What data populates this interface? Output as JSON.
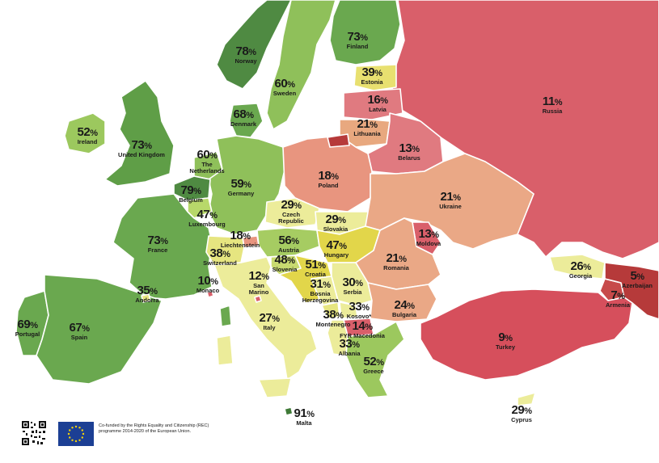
{
  "countries": [
    {
      "id": "russia",
      "name": "Russia",
      "value": "11",
      "color": "#d95f6a"
    },
    {
      "id": "finland",
      "name": "Finland",
      "value": "73",
      "color": "#6aa84f"
    },
    {
      "id": "norway",
      "name": "Norway",
      "value": "78",
      "color": "#4f8a42"
    },
    {
      "id": "sweden",
      "name": "Sweden",
      "value": "60",
      "color": "#8fc05a"
    },
    {
      "id": "estonia",
      "name": "Estonia",
      "value": "39",
      "color": "#e8e070"
    },
    {
      "id": "latvia",
      "name": "Latvia",
      "value": "16",
      "color": "#e07a80"
    },
    {
      "id": "lithuania",
      "name": "Lithuania",
      "value": "21",
      "color": "#e8a87f"
    },
    {
      "id": "belarus",
      "name": "Belarus",
      "value": "13",
      "color": "#e07a80"
    },
    {
      "id": "denmark",
      "name": "Denmark",
      "value": "68",
      "color": "#6aa84f"
    },
    {
      "id": "ireland",
      "name": "Ireland",
      "value": "52",
      "color": "#9cc85e"
    },
    {
      "id": "united-kingdom",
      "name": "United Kingdom",
      "value": "73",
      "color": "#5f9e47"
    },
    {
      "id": "netherlands",
      "name": "The Netherlands",
      "value": "60",
      "color": "#8fc05a"
    },
    {
      "id": "germany",
      "name": "Germany",
      "value": "59",
      "color": "#8fc05a"
    },
    {
      "id": "poland",
      "name": "Poland",
      "value": "18",
      "color": "#e8957f"
    },
    {
      "id": "belgium",
      "name": "Belgium",
      "value": "79",
      "color": "#4f8a42"
    },
    {
      "id": "luxembourg",
      "name": "Luxembourg",
      "value": "47",
      "color": "#b8d86a"
    },
    {
      "id": "czech-republic",
      "name": "Czech Republic",
      "value": "29",
      "color": "#ecec9a"
    },
    {
      "id": "slovakia",
      "name": "Slovakia",
      "value": "29",
      "color": "#ecec9a"
    },
    {
      "id": "ukraine",
      "name": "Ukraine",
      "value": "21",
      "color": "#eaa886"
    },
    {
      "id": "moldova",
      "name": "Moldova",
      "value": "13",
      "color": "#d95f6a"
    },
    {
      "id": "france",
      "name": "France",
      "value": "73",
      "color": "#6aa84f"
    },
    {
      "id": "liechtenstein",
      "name": "Liechtenstein",
      "value": "18",
      "color": "#e8957f"
    },
    {
      "id": "switzerland",
      "name": "Switzerland",
      "value": "38",
      "color": "#e6e580"
    },
    {
      "id": "austria",
      "name": "Austria",
      "value": "56",
      "color": "#a6cc62"
    },
    {
      "id": "hungary",
      "name": "Hungary",
      "value": "47",
      "color": "#e2d64a"
    },
    {
      "id": "romania",
      "name": "Romania",
      "value": "21",
      "color": "#eaa886"
    },
    {
      "id": "slovenia",
      "name": "Slovenia",
      "value": "48",
      "color": "#c8da70"
    },
    {
      "id": "croatia",
      "name": "Croatia",
      "value": "51",
      "color": "#e2d64a"
    },
    {
      "id": "serbia",
      "name": "Serbia",
      "value": "30",
      "color": "#ecec9a"
    },
    {
      "id": "monaco",
      "name": "Monaco",
      "value": "10",
      "color": "#d95f6a"
    },
    {
      "id": "san-marino",
      "name": "San Marino",
      "value": "12",
      "color": "#d95f6a"
    },
    {
      "id": "andorra",
      "name": "Andorra",
      "value": "35",
      "color": "#e6e580"
    },
    {
      "id": "bosnia",
      "name": "Bosnia Herzegovina",
      "value": "31",
      "color": "#ecec9a"
    },
    {
      "id": "kosovo",
      "name": "Kosovo*",
      "value": "33",
      "color": "#ecec9a"
    },
    {
      "id": "montenegro",
      "name": "Montenegro",
      "value": "38",
      "color": "#e6e580"
    },
    {
      "id": "bulgaria",
      "name": "Bulgaria",
      "value": "24",
      "color": "#eaa886"
    },
    {
      "id": "georgia",
      "name": "Georgia",
      "value": "26",
      "color": "#ecec9a"
    },
    {
      "id": "azerbaijan",
      "name": "Azerbaijan",
      "value": "5",
      "color": "#b63a3a"
    },
    {
      "id": "armenia",
      "name": "Armenia",
      "value": "7",
      "color": "#c74a4a"
    },
    {
      "id": "portugal",
      "name": "Portugal",
      "value": "69",
      "color": "#6aa84f"
    },
    {
      "id": "spain",
      "name": "Spain",
      "value": "67",
      "color": "#6aa84f"
    },
    {
      "id": "italy",
      "name": "Italy",
      "value": "27",
      "color": "#ecec9a"
    },
    {
      "id": "fyr-macedonia",
      "name": "FYR Macedonia",
      "value": "14",
      "color": "#d95f6a"
    },
    {
      "id": "albania",
      "name": "Albania",
      "value": "33",
      "color": "#ecec9a"
    },
    {
      "id": "turkey",
      "name": "Turkey",
      "value": "9",
      "color": "#d64f5c"
    },
    {
      "id": "greece",
      "name": "Greece",
      "value": "52",
      "color": "#9cc85e"
    },
    {
      "id": "malta",
      "name": "Malta",
      "value": "91",
      "color": "#3f7a37"
    },
    {
      "id": "cyprus",
      "name": "Cyprus",
      "value": "29",
      "color": "#ecec9a"
    }
  ],
  "percent_symbol": "%",
  "footer": {
    "credit_text": "Co-funded by the Rights Equality and Citizenship (REC) programme 2014-2020 of the European Union."
  },
  "colors": {
    "sea": "#ffffff",
    "border": "#ffffff",
    "eu_blue": "#1c3f94",
    "eu_star": "#f5d20a"
  }
}
